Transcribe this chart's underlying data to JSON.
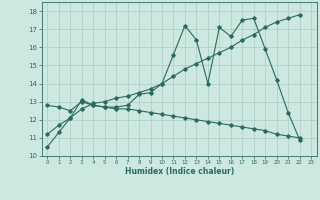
{
  "xlabel": "Humidex (Indice chaleur)",
  "xlim": [
    -0.5,
    23.5
  ],
  "ylim": [
    10,
    18.5
  ],
  "yticks": [
    10,
    11,
    12,
    13,
    14,
    15,
    16,
    17,
    18
  ],
  "xticks": [
    0,
    1,
    2,
    3,
    4,
    5,
    6,
    7,
    8,
    9,
    10,
    11,
    12,
    13,
    14,
    15,
    16,
    17,
    18,
    19,
    20,
    21,
    22,
    23
  ],
  "bg_color": "#cde8e0",
  "grid_color": "#aaccc4",
  "line_color": "#2a6b5a",
  "line1_x": [
    0,
    1,
    2,
    3,
    4,
    5,
    6,
    7,
    8,
    9,
    10,
    11,
    12,
    13,
    14,
    15,
    16,
    17,
    18,
    19,
    20,
    21,
    22
  ],
  "line1_y": [
    10.5,
    11.3,
    12.1,
    13.1,
    12.8,
    12.7,
    12.7,
    12.8,
    13.4,
    13.5,
    14.0,
    15.6,
    17.2,
    16.4,
    14.0,
    17.1,
    16.6,
    17.5,
    17.6,
    15.9,
    14.2,
    12.4,
    10.9
  ],
  "line2_x": [
    0,
    1,
    2,
    3,
    4,
    5,
    6,
    7,
    8,
    9,
    10,
    11,
    12,
    13,
    14,
    15,
    16,
    17,
    18,
    19,
    20,
    21,
    22
  ],
  "line2_y": [
    11.2,
    11.7,
    12.1,
    12.6,
    12.9,
    13.0,
    13.2,
    13.3,
    13.5,
    13.7,
    14.0,
    14.4,
    14.8,
    15.1,
    15.4,
    15.7,
    16.0,
    16.4,
    16.7,
    17.1,
    17.4,
    17.6,
    17.8
  ],
  "line3_x": [
    0,
    1,
    2,
    3,
    4,
    5,
    6,
    7,
    8,
    9,
    10,
    11,
    12,
    13,
    14,
    15,
    16,
    17,
    18,
    19,
    20,
    21,
    22
  ],
  "line3_y": [
    12.8,
    12.7,
    12.5,
    13.0,
    12.8,
    12.7,
    12.6,
    12.6,
    12.5,
    12.4,
    12.3,
    12.2,
    12.1,
    12.0,
    11.9,
    11.8,
    11.7,
    11.6,
    11.5,
    11.4,
    11.2,
    11.1,
    11.0
  ]
}
